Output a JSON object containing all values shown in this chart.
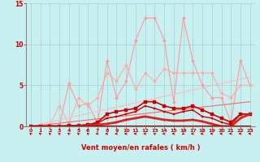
{
  "background_color": "#c8f0f0",
  "grid_color": "#a0d0d0",
  "xlabel": "Vent moyen/en rafales ( km/h )",
  "xlim": [
    -0.5,
    23.5
  ],
  "ylim": [
    0,
    15
  ],
  "xticks": [
    0,
    1,
    2,
    3,
    4,
    5,
    6,
    7,
    8,
    9,
    10,
    11,
    12,
    13,
    14,
    15,
    16,
    17,
    18,
    19,
    20,
    21,
    22,
    23
  ],
  "yticks": [
    0,
    5,
    10,
    15
  ],
  "tick_color": "#cc0000",
  "label_color": "#cc0000",
  "series": [
    {
      "color": "#ff9999",
      "linewidth": 0.8,
      "marker": "D",
      "markersize": 2.0,
      "y": [
        0,
        0.05,
        0.1,
        0.1,
        5.2,
        2.5,
        2.8,
        0.3,
        8.0,
        3.5,
        5.5,
        10.5,
        13.2,
        13.2,
        10.5,
        3.0,
        13.2,
        8.0,
        5.0,
        3.5,
        3.5,
        0.5,
        8.0,
        5.0
      ]
    },
    {
      "color": "#ffaaaa",
      "linewidth": 0.8,
      "marker": "D",
      "markersize": 2.0,
      "y": [
        0,
        0.1,
        0.2,
        2.5,
        0.3,
        3.5,
        2.5,
        3.5,
        6.5,
        5.5,
        7.5,
        4.5,
        6.5,
        5.5,
        7.0,
        6.5,
        6.5,
        6.5,
        6.5,
        6.5,
        4.0,
        3.5,
        5.0,
        5.0
      ]
    },
    {
      "color": "#ffbbbb",
      "linewidth": 0.8,
      "marker": null,
      "markersize": 0,
      "y": [
        0.0,
        0.26,
        0.52,
        0.78,
        1.04,
        1.3,
        1.56,
        1.82,
        2.08,
        2.34,
        2.61,
        2.87,
        3.13,
        3.39,
        3.65,
        3.91,
        4.17,
        4.43,
        4.7,
        4.96,
        5.22,
        5.48,
        5.74,
        6.0
      ]
    },
    {
      "color": "#ff6666",
      "linewidth": 0.8,
      "marker": null,
      "markersize": 0,
      "y": [
        0.0,
        0.13,
        0.26,
        0.39,
        0.52,
        0.65,
        0.78,
        0.91,
        1.04,
        1.17,
        1.3,
        1.43,
        1.57,
        1.7,
        1.83,
        1.96,
        2.09,
        2.22,
        2.35,
        2.48,
        2.61,
        2.74,
        2.87,
        3.0
      ]
    },
    {
      "color": "#cc0000",
      "linewidth": 1.2,
      "marker": "s",
      "markersize": 2.5,
      "y": [
        0,
        0.0,
        0.0,
        0.0,
        0.1,
        0.1,
        0.2,
        0.5,
        1.5,
        1.8,
        2.0,
        2.2,
        3.0,
        3.0,
        2.5,
        2.2,
        2.2,
        2.5,
        2.0,
        1.5,
        1.0,
        0.5,
        1.5,
        1.5
      ]
    },
    {
      "color": "#cc0000",
      "linewidth": 1.0,
      "marker": "s",
      "markersize": 2.0,
      "y": [
        0,
        0.0,
        0.0,
        0.0,
        0.0,
        0.1,
        0.2,
        0.4,
        1.0,
        1.2,
        1.5,
        1.8,
        2.5,
        2.2,
        1.8,
        1.5,
        1.8,
        2.0,
        1.2,
        1.0,
        0.5,
        0.2,
        1.5,
        1.5
      ]
    },
    {
      "color": "#dd2222",
      "linewidth": 2.0,
      "marker": "s",
      "markersize": 1.5,
      "y": [
        0,
        0.0,
        0.0,
        0.0,
        0.0,
        0.05,
        0.1,
        0.2,
        0.3,
        0.5,
        0.8,
        1.0,
        1.2,
        1.0,
        0.8,
        0.7,
        0.7,
        0.8,
        0.6,
        0.3,
        0.0,
        0.0,
        1.0,
        1.5
      ]
    },
    {
      "color": "#990000",
      "linewidth": 1.5,
      "marker": null,
      "markersize": 0,
      "y": [
        0,
        0.0,
        0.0,
        0.0,
        0.0,
        0.0,
        0.0,
        0.0,
        0.0,
        0.0,
        0.0,
        0.0,
        0.0,
        0.0,
        0.0,
        0.0,
        0.0,
        0.0,
        0.0,
        0.0,
        0.0,
        0.0,
        0.0,
        0.0
      ]
    }
  ],
  "arrows": {
    "color": "#cc0000",
    "directions": [
      225,
      225,
      225,
      225,
      225,
      225,
      225,
      270,
      270,
      270,
      270,
      270,
      270,
      225,
      270,
      270,
      315,
      270,
      270,
      270,
      270,
      270,
      270,
      270
    ]
  }
}
